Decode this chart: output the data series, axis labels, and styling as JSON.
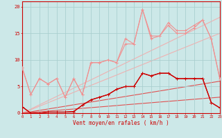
{
  "x": [
    0,
    1,
    2,
    3,
    4,
    5,
    6,
    7,
    8,
    9,
    10,
    11,
    12,
    13,
    14,
    15,
    16,
    17,
    18,
    19,
    20,
    21,
    22,
    23
  ],
  "line_dark1": [
    1.2,
    0.0,
    0.0,
    0.2,
    0.2,
    0.2,
    0.3,
    1.5,
    2.5,
    3.0,
    3.5,
    4.5,
    5.0,
    5.0,
    7.5,
    7.0,
    7.5,
    7.5,
    6.5,
    6.5,
    6.5,
    6.5,
    2.0,
    1.0
  ],
  "line_dark2": [
    1.2,
    0.0,
    0.0,
    0.2,
    0.2,
    0.2,
    0.3,
    1.5,
    2.5,
    3.0,
    3.5,
    4.5,
    5.0,
    5.0,
    7.5,
    7.0,
    7.5,
    7.5,
    6.5,
    6.5,
    6.5,
    6.5,
    2.0,
    1.0
  ],
  "line_pink1": [
    8.5,
    3.5,
    6.5,
    5.5,
    6.5,
    3.0,
    6.5,
    3.5,
    9.5,
    9.5,
    10.0,
    9.5,
    14.0,
    13.0,
    19.5,
    14.5,
    14.5,
    17.0,
    15.5,
    15.5,
    16.5,
    17.5,
    14.0,
    6.5
  ],
  "line_pink2": [
    8.5,
    3.5,
    6.5,
    5.5,
    6.5,
    3.0,
    6.5,
    3.5,
    9.5,
    9.5,
    10.0,
    9.5,
    13.0,
    13.0,
    19.5,
    14.0,
    14.5,
    16.5,
    15.0,
    15.0,
    16.0,
    17.5,
    14.0,
    6.5
  ],
  "trend_top1": [
    0.0,
    0.78,
    1.56,
    2.35,
    3.13,
    3.91,
    4.7,
    5.48,
    6.26,
    7.04,
    7.83,
    8.61,
    9.39,
    10.17,
    10.96,
    11.74,
    12.52,
    13.3,
    14.09,
    14.87,
    15.65,
    16.43,
    17.22,
    18.0
  ],
  "trend_top2": [
    0.0,
    0.65,
    1.3,
    1.96,
    2.61,
    3.26,
    3.91,
    4.57,
    5.22,
    5.87,
    6.52,
    7.17,
    7.83,
    8.48,
    9.13,
    9.78,
    10.43,
    11.09,
    11.74,
    12.39,
    13.04,
    13.7,
    14.35,
    15.0
  ],
  "trend_bot1": [
    0.0,
    0.26,
    0.52,
    0.78,
    1.04,
    1.3,
    1.57,
    1.83,
    2.09,
    2.35,
    2.61,
    2.87,
    3.13,
    3.39,
    3.65,
    3.91,
    4.17,
    4.43,
    4.7,
    4.96,
    5.22,
    5.48,
    5.74,
    6.0
  ],
  "trend_bot2": [
    0.0,
    0.13,
    0.26,
    0.39,
    0.52,
    0.65,
    0.78,
    0.91,
    1.04,
    1.17,
    1.3,
    1.43,
    1.57,
    1.7,
    1.83,
    1.96,
    2.09,
    2.22,
    2.35,
    2.48,
    2.61,
    2.74,
    2.87,
    3.0
  ],
  "color_dark_red": "#cc0000",
  "color_medium_red": "#e05050",
  "color_pink": "#f09090",
  "color_light_pink": "#f0b0b0",
  "background": "#cce8e8",
  "grid_color": "#aacfcf",
  "xlabel": "Vent moyen/en rafales ( km/h )",
  "ylabel_ticks": [
    0,
    5,
    10,
    15,
    20
  ],
  "ylim": [
    0,
    21
  ],
  "xlim": [
    0,
    23
  ]
}
